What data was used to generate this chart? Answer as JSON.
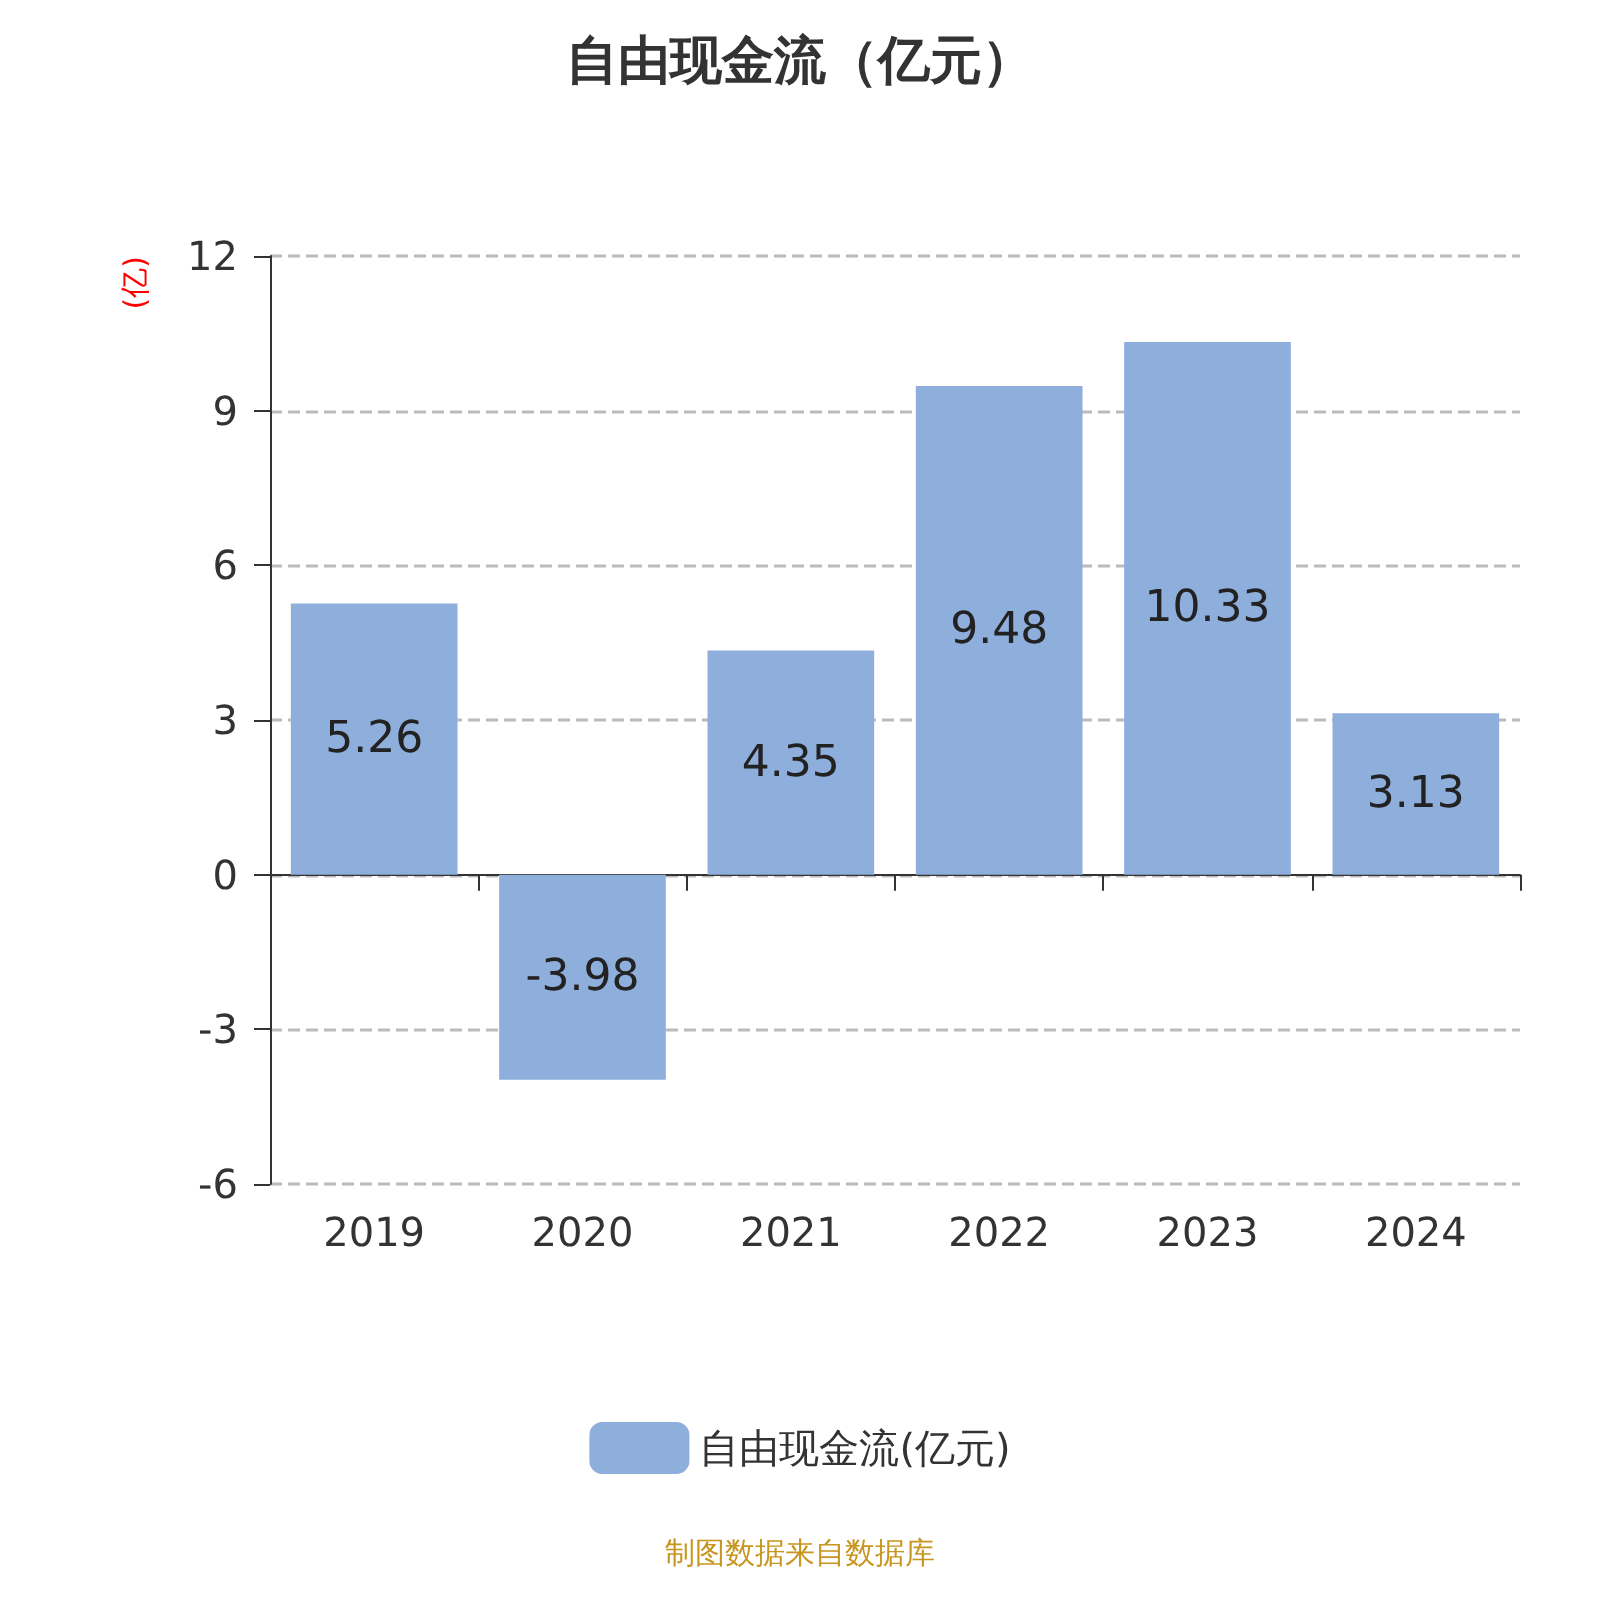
{
  "chart_data": {
    "type": "bar",
    "title": "自由现金流（亿元）",
    "ylabel": "(亿)",
    "categories": [
      "2019",
      "2020",
      "2021",
      "2022",
      "2023",
      "2024"
    ],
    "series": [
      {
        "name": "自由现金流(亿元)",
        "color": "#8eaedb",
        "values": [
          5.26,
          -3.98,
          4.35,
          9.48,
          10.33,
          3.13
        ]
      }
    ],
    "ylim": [
      -6,
      12
    ],
    "yticks": [
      -6,
      -3,
      0,
      3,
      6,
      9,
      12
    ],
    "grid": "y",
    "legend": "bottom",
    "data_labels": true,
    "annotations": [
      "制图数据来自数据库"
    ]
  }
}
